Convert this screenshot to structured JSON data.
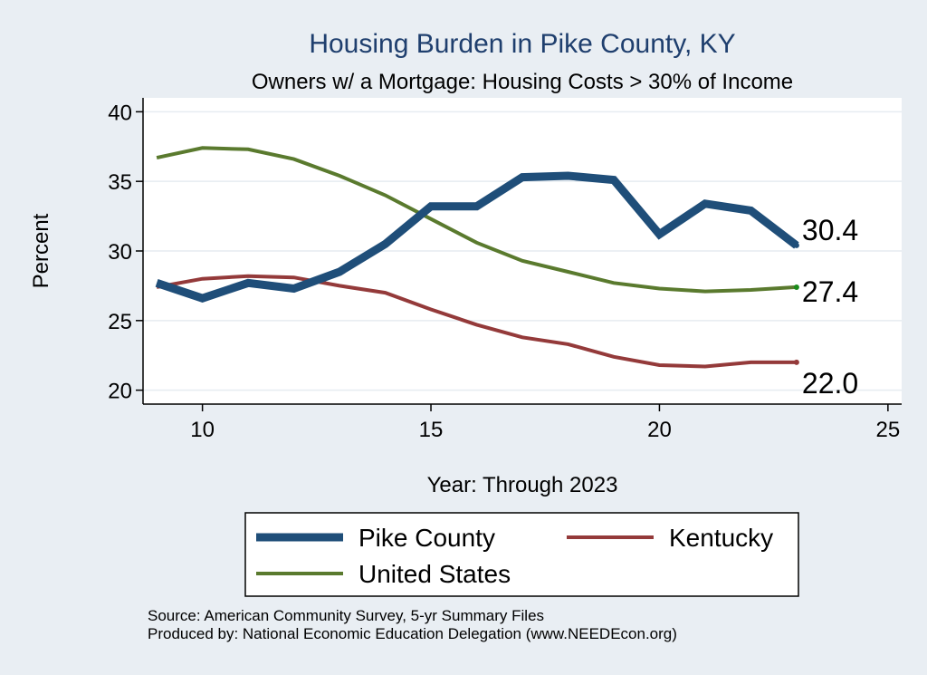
{
  "chart_data": {
    "type": "line",
    "title": "Housing Burden in Pike County, KY",
    "subtitle": "Owners w/ a Mortgage: Housing Costs > 30% of Income",
    "xlabel": "Year: Through 2023",
    "ylabel": "Percent",
    "xlim": [
      8.7,
      25.3
    ],
    "ylim": [
      19,
      41
    ],
    "xticks": [
      10,
      15,
      20,
      25
    ],
    "yticks": [
      20,
      25,
      30,
      35,
      40
    ],
    "grid": true,
    "legend_position": "bottom",
    "x": [
      9,
      10,
      11,
      12,
      13,
      14,
      15,
      16,
      17,
      18,
      19,
      20,
      21,
      22,
      23
    ],
    "series": [
      {
        "name": "Pike County",
        "color": "#1f4e79",
        "values": [
          27.7,
          26.6,
          27.7,
          27.3,
          28.5,
          30.5,
          33.2,
          33.2,
          35.3,
          35.4,
          35.1,
          31.2,
          33.4,
          32.9,
          30.4
        ],
        "end_label": "30.4"
      },
      {
        "name": "Kentucky",
        "color": "#943a3a",
        "values": [
          27.4,
          28.0,
          28.2,
          28.1,
          27.5,
          27.0,
          25.8,
          24.7,
          23.8,
          23.3,
          22.4,
          21.8,
          21.7,
          22.0,
          22.0
        ],
        "end_label": "22.0"
      },
      {
        "name": "United States",
        "color": "#5a7a2e",
        "values": [
          36.7,
          37.4,
          37.3,
          36.6,
          35.4,
          34.0,
          32.3,
          30.6,
          29.3,
          28.5,
          27.7,
          27.3,
          27.1,
          27.2,
          27.4
        ],
        "end_label": "27.4"
      }
    ]
  },
  "colors": {
    "title": "#1f3f6e",
    "background": "#e9eef3",
    "plot_background": "#ffffff",
    "grid": "#e6ecf1"
  },
  "footer": {
    "source": "Source: American Community Survey, 5-yr Summary Files",
    "produced_by": "Produced by: National Economic Education Delegation (www.NEEDEcon.org)"
  }
}
